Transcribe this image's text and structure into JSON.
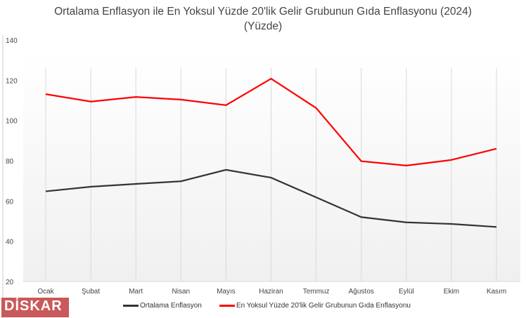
{
  "chart_data": {
    "type": "line",
    "title": "Ortalama Enflasyon ile En Yoksul Yüzde 20'lik Gelir Grubunun Gıda Enflasyonu (2024)",
    "subtitle": "(Yüzde)",
    "categories": [
      "Ocak",
      "Şubat",
      "Mart",
      "Nisan",
      "Mayıs",
      "Haziran",
      "Temmuz",
      "Ağustos",
      "Eylül",
      "Ekim",
      "Kasım"
    ],
    "series": [
      {
        "name": "Ortalama Enflasyon",
        "color": "#333333",
        "values": [
          64.8,
          67.1,
          68.5,
          69.8,
          75.5,
          71.6,
          61.8,
          52.0,
          49.4,
          48.6,
          47.1
        ]
      },
      {
        "name": "En Yoksul Yüzde 20'lik Gelir Grubunun Gıda Enflasyonu",
        "color": "#ff0000",
        "values": [
          113.1,
          109.4,
          111.7,
          110.4,
          107.6,
          120.8,
          106.2,
          79.8,
          77.6,
          80.4,
          86.0
        ]
      }
    ],
    "ylim": [
      20,
      140
    ],
    "yticks": [
      20,
      40,
      60,
      80,
      100,
      120,
      140
    ],
    "xlabel": "",
    "ylabel": "",
    "grid": "vertical",
    "legend": "bottom"
  },
  "logo": "DİSKAR"
}
